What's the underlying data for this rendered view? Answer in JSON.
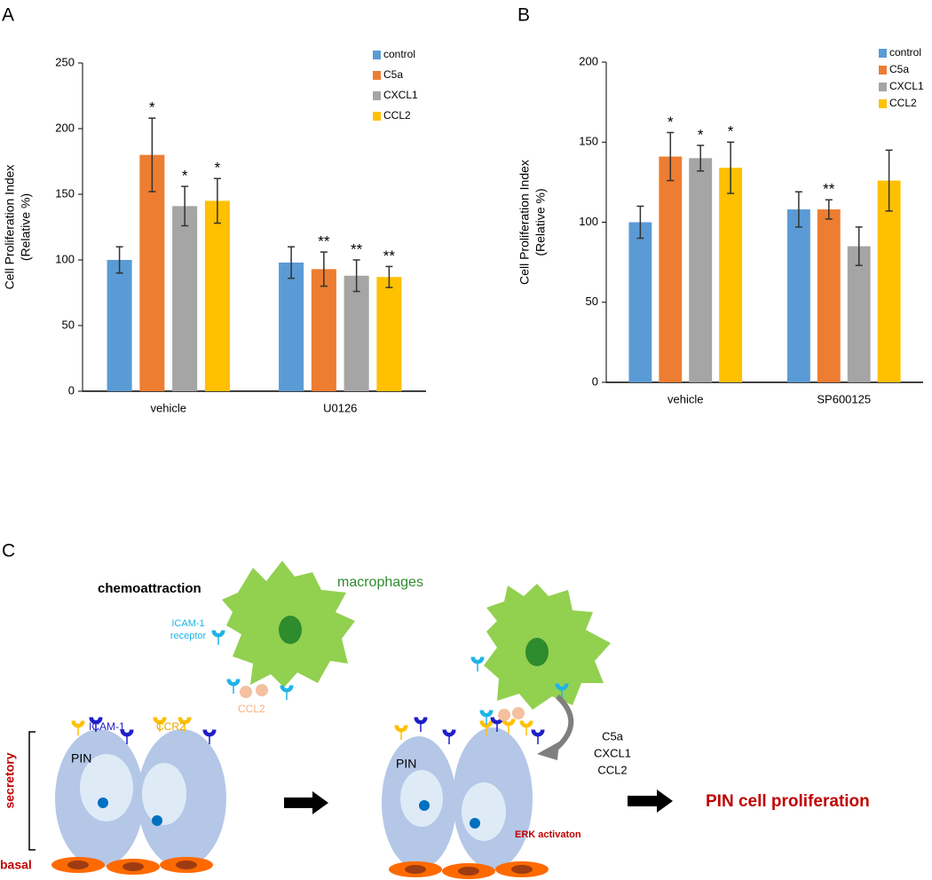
{
  "chart_data": [
    {
      "type": "bar",
      "panel_label": "A",
      "ylabel_lines": [
        "Cell Proliferation Index",
        "(Relative %)"
      ],
      "categories": [
        "vehicle",
        "U0126"
      ],
      "ylim": [
        0,
        250
      ],
      "yticks": [
        0,
        50,
        100,
        150,
        200,
        250
      ],
      "legend": "top-right",
      "series": [
        {
          "name": "control",
          "color": "#5b9bd5",
          "values": [
            100,
            98
          ],
          "errors": [
            10,
            12
          ],
          "annotations": [
            null,
            null
          ]
        },
        {
          "name": "C5a",
          "color": "#ed7d31",
          "values": [
            180,
            93
          ],
          "errors": [
            28,
            13
          ],
          "annotations": [
            "*",
            "**"
          ]
        },
        {
          "name": "CXCL1",
          "color": "#a5a5a5",
          "values": [
            141,
            88
          ],
          "errors": [
            15,
            12
          ],
          "annotations": [
            "*",
            "**"
          ]
        },
        {
          "name": "CCL2",
          "color": "#ffc000",
          "values": [
            145,
            87
          ],
          "errors": [
            17,
            8
          ],
          "annotations": [
            "*",
            "**"
          ]
        }
      ]
    },
    {
      "type": "bar",
      "panel_label": "B",
      "ylabel_lines": [
        "Cell Proliferation Index",
        "(Relative %)"
      ],
      "categories": [
        "vehicle",
        "SP600125"
      ],
      "ylim": [
        0,
        200
      ],
      "yticks": [
        0,
        50,
        100,
        150,
        200
      ],
      "legend": "top-right",
      "series": [
        {
          "name": "control",
          "color": "#5b9bd5",
          "values": [
            100,
            108
          ],
          "errors": [
            10,
            11
          ],
          "annotations": [
            null,
            null
          ]
        },
        {
          "name": "C5a",
          "color": "#ed7d31",
          "values": [
            141,
            108
          ],
          "errors": [
            15,
            6
          ],
          "annotations": [
            "*",
            "**"
          ]
        },
        {
          "name": "CXCL1",
          "color": "#a5a5a5",
          "values": [
            140,
            85
          ],
          "errors": [
            8,
            12
          ],
          "annotations": [
            "*",
            null
          ]
        },
        {
          "name": "CCL2",
          "color": "#ffc000",
          "values": [
            134,
            126
          ],
          "errors": [
            16,
            19
          ],
          "annotations": [
            "*",
            null
          ]
        }
      ]
    }
  ],
  "diagram": {
    "panel_label": "C",
    "chemoattraction": "chemoattraction",
    "macrophages": "macrophages",
    "icam_receptor": [
      "ICAM-1",
      "receptor"
    ],
    "ccl2": "CCL2",
    "icam1": "ICAM-1",
    "ccr2": "CCR2",
    "pin_left": "PIN",
    "pin_right": "PIN",
    "secretory": "secretory",
    "basal": "basal",
    "factors": [
      "C5a",
      "CXCL1",
      "CCL2"
    ],
    "erk": "ERK activaton",
    "result": "PIN cell proliferation"
  }
}
